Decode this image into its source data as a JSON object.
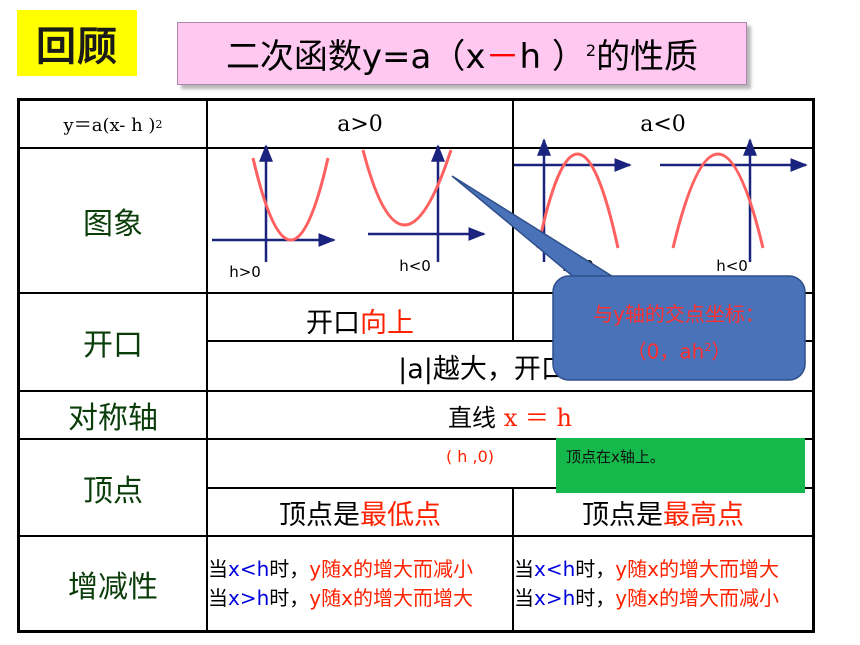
{
  "header": {
    "badge": "回顾",
    "title_parts": [
      "二次函数y=a（x",
      "－",
      " h ）",
      "2",
      "的性质"
    ]
  },
  "table": {
    "head": {
      "formula_parts": [
        "y＝a(x- h )",
        "2"
      ],
      "pos": "a>0",
      "neg": "a<0"
    },
    "rows": {
      "graph": "图象",
      "opening": "开口",
      "axis": "对称轴",
      "vertex": "顶点",
      "monotonic": "增减性"
    },
    "graph_labels": [
      "h>0",
      "h<0",
      "h>0",
      "h<0"
    ],
    "opening": {
      "pos_prefix": "开口",
      "pos_dir": "向上",
      "size_rule": "|a|越大，开口越小"
    },
    "axis": {
      "prefix": "直线 ",
      "value": "x ＝ h"
    },
    "vertex": {
      "coord": "( h ,0)",
      "pos_prefix": "顶点是",
      "pos_kind": "最低点",
      "neg_prefix": "顶点是",
      "neg_kind": "最高点"
    },
    "monotonic": {
      "pos_line1": [
        "当",
        "x<h",
        "时，",
        "y随x的增大而减小"
      ],
      "pos_line2": [
        "当",
        "x>h",
        "时，",
        "y随x的增大而增大"
      ],
      "neg_line1": [
        "当",
        "x<h",
        "时，",
        "y随x的增大而增大"
      ],
      "neg_line2": [
        "当",
        "x>h",
        "时，",
        "y随x的增大而减小"
      ]
    }
  },
  "callout": {
    "line1": "与y轴的交点坐标：",
    "line2_prefix": "（0，ah",
    "line2_sup": "2",
    "line2_suffix": "）"
  },
  "note_box": "顶点在x轴上。",
  "colors": {
    "badge_bg": "#ffff00",
    "title_bg": "#ffc8f0",
    "label_green": "#0a3d0a",
    "accent_red": "#ff2200",
    "axis_blue": "#1a237e",
    "parabola": "#ff6060",
    "callout_fill": "#4a72b8",
    "note_green": "#14b84b"
  }
}
